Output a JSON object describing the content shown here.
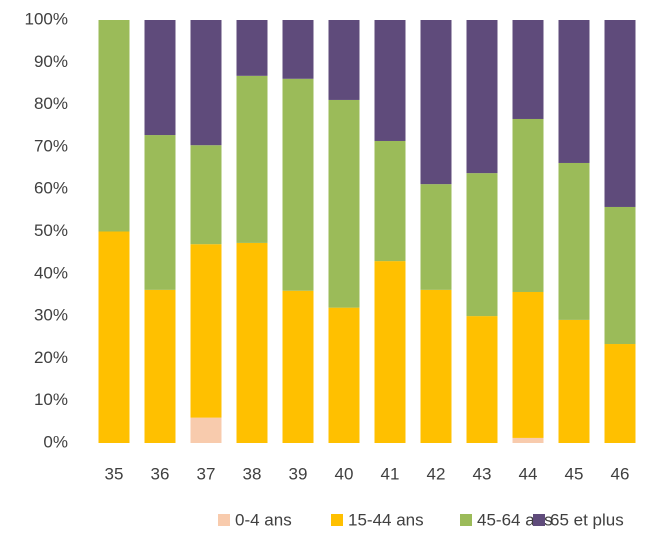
{
  "chart_data": {
    "type": "stacked_bar",
    "categories": [
      "35",
      "36",
      "37",
      "38",
      "39",
      "40",
      "41",
      "42",
      "43",
      "44",
      "45",
      "46"
    ],
    "series": [
      {
        "name": "0-4 ans",
        "color": "#f8cbad",
        "values": [
          0,
          0,
          6,
          0,
          0,
          0,
          0,
          0,
          0,
          1.2,
          0,
          0
        ]
      },
      {
        "name": "15-44 ans",
        "color": "#ffc000",
        "values": [
          50,
          36.2,
          41,
          47.3,
          36,
          32,
          43,
          36.2,
          30,
          34.5,
          29.1,
          23.4
        ]
      },
      {
        "name": "45-64 ans",
        "color": "#9bbb59",
        "values": [
          50,
          36.6,
          23.4,
          39.5,
          50.1,
          49.1,
          28.4,
          25,
          33.8,
          40.9,
          37.1,
          32.4
        ]
      },
      {
        "name": "65 et plus",
        "color": "#5f4b7b",
        "values": [
          0,
          27.2,
          29.6,
          13.2,
          13.9,
          18.9,
          28.6,
          38.8,
          36.2,
          23.4,
          33.8,
          44.2
        ]
      }
    ],
    "ylim": [
      0,
      100
    ],
    "yticks": [
      {
        "value": 0,
        "label": "0%"
      },
      {
        "value": 10,
        "label": "10%"
      },
      {
        "value": 20,
        "label": "20%"
      },
      {
        "value": 30,
        "label": "30%"
      },
      {
        "value": 40,
        "label": "40%"
      },
      {
        "value": 50,
        "label": "50%"
      },
      {
        "value": 60,
        "label": "60%"
      },
      {
        "value": 70,
        "label": "70%"
      },
      {
        "value": 80,
        "label": "80%"
      },
      {
        "value": 90,
        "label": "90%"
      },
      {
        "value": 100,
        "label": "100%"
      }
    ],
    "grid": false
  }
}
